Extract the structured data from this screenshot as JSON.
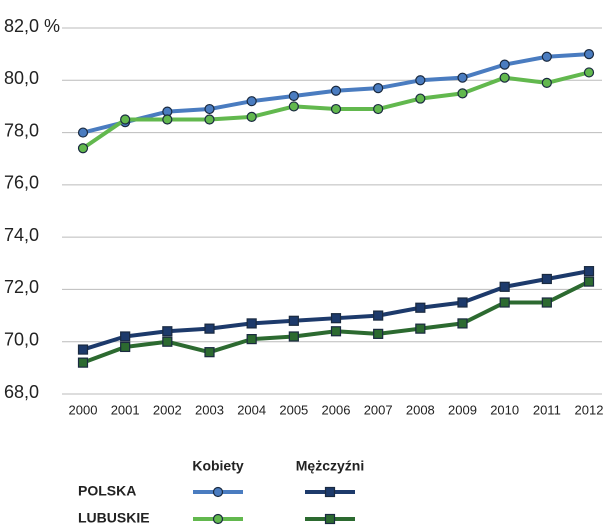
{
  "chart_data": {
    "type": "line",
    "categories": [
      "2000",
      "2001",
      "2002",
      "2003",
      "2004",
      "2005",
      "2006",
      "2007",
      "2008",
      "2009",
      "2010",
      "2011",
      "2012"
    ],
    "ylim": [
      68,
      82
    ],
    "yticks": [
      {
        "value": 68,
        "label": "68,0"
      },
      {
        "value": 70,
        "label": "70,0"
      },
      {
        "value": 72,
        "label": "72,0"
      },
      {
        "value": 74,
        "label": "74,0"
      },
      {
        "value": 76,
        "label": "76,0"
      },
      {
        "value": 78,
        "label": "78,0"
      },
      {
        "value": 80,
        "label": "80,0"
      },
      {
        "value": 82,
        "label": "82,0 %"
      }
    ],
    "grid": true,
    "legend_columns": [
      "Kobiety",
      "Mężczyźni"
    ],
    "markers": [
      "circle",
      "square"
    ],
    "groups": [
      {
        "name": "POLSKA",
        "series": [
          {
            "color": "#4a7cc0",
            "values": [
              78.0,
              78.4,
              78.8,
              78.9,
              79.2,
              79.4,
              79.6,
              79.7,
              80.0,
              80.1,
              80.6,
              80.9,
              81.0
            ]
          },
          {
            "color": "#1d3a6b",
            "values": [
              69.7,
              70.2,
              70.4,
              70.5,
              70.7,
              70.8,
              70.9,
              71.0,
              71.3,
              71.5,
              72.1,
              72.4,
              72.7
            ]
          }
        ]
      },
      {
        "name": "LUBUSKIE",
        "series": [
          {
            "color": "#62b84e",
            "values": [
              77.4,
              78.5,
              78.5,
              78.5,
              78.6,
              79.0,
              78.9,
              78.9,
              79.3,
              79.5,
              80.1,
              79.9,
              80.3
            ]
          },
          {
            "color": "#2c6a30",
            "values": [
              69.2,
              69.8,
              70.0,
              69.6,
              70.1,
              70.2,
              70.4,
              70.3,
              70.5,
              70.7,
              71.5,
              71.5,
              72.3
            ]
          }
        ]
      }
    ]
  }
}
